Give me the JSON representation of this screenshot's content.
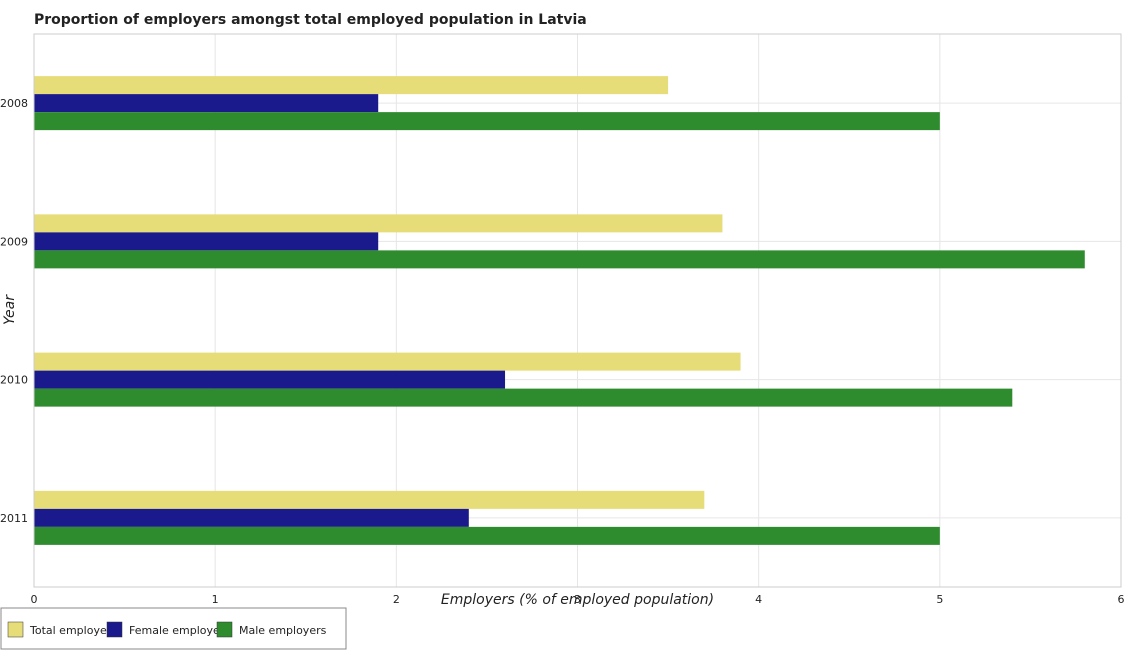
{
  "chart_data": {
    "type": "bar",
    "orientation": "horizontal",
    "title": "Proportion of employers amongst total employed population in Latvia",
    "xlabel": "Employers (% of employed population)",
    "ylabel": "Year",
    "xlim": [
      0,
      6
    ],
    "xticks": [
      "0",
      "1",
      "2",
      "3",
      "4",
      "5",
      "6"
    ],
    "grid": true,
    "legend_position": "bottom-left",
    "categories": [
      "2008",
      "2009",
      "2010",
      "2011"
    ],
    "series": [
      {
        "name": "Total employers",
        "color": "#e6dc78",
        "values": [
          3.5,
          3.8,
          3.9,
          3.7
        ]
      },
      {
        "name": "Female employers",
        "color": "#1a1a8c",
        "values": [
          1.9,
          1.9,
          2.6,
          2.4
        ]
      },
      {
        "name": "Male employers",
        "color": "#2e8b2e",
        "values": [
          5.0,
          5.8,
          5.4,
          5.0
        ]
      }
    ]
  }
}
